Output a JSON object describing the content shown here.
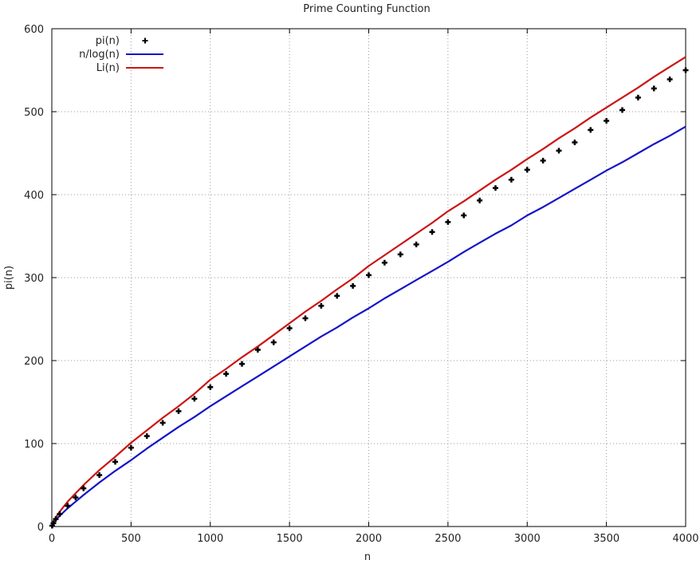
{
  "chart_data": {
    "type": "line",
    "title": "Prime Counting Function",
    "xlabel": "n",
    "ylabel": "pi(n)",
    "xlim": [
      0,
      4000
    ],
    "ylim": [
      0,
      600
    ],
    "x_ticks": [
      0,
      500,
      1000,
      1500,
      2000,
      2500,
      3000,
      3500,
      4000
    ],
    "y_ticks": [
      0,
      100,
      200,
      300,
      400,
      500,
      600
    ],
    "grid": true,
    "legend_position": "top-left",
    "x": [
      2,
      10,
      25,
      50,
      100,
      150,
      200,
      300,
      400,
      500,
      600,
      700,
      800,
      900,
      1000,
      1100,
      1200,
      1300,
      1400,
      1500,
      1600,
      1700,
      1800,
      1900,
      2000,
      2100,
      2200,
      2300,
      2400,
      2500,
      2600,
      2700,
      2800,
      2900,
      3000,
      3100,
      3200,
      3300,
      3400,
      3500,
      3600,
      3700,
      3800,
      3900,
      4000
    ],
    "series": [
      {
        "name": "pi(n)",
        "style": "points",
        "marker": "+",
        "color": "#000000",
        "values": [
          1,
          4,
          9,
          15,
          25,
          35,
          46,
          62,
          78,
          95,
          109,
          125,
          139,
          154,
          168,
          184,
          196,
          213,
          222,
          239,
          251,
          266,
          278,
          290,
          303,
          318,
          328,
          340,
          355,
          367,
          375,
          393,
          408,
          418,
          430,
          441,
          453,
          463,
          478,
          489,
          502,
          517,
          528,
          539,
          550
        ]
      },
      {
        "name": "n/log(n)",
        "style": "line",
        "color": "#1414c8",
        "values": [
          3,
          4,
          8,
          13,
          22,
          30,
          38,
          53,
          67,
          80,
          94,
          107,
          120,
          132,
          145,
          157,
          169,
          181,
          193,
          205,
          217,
          229,
          240,
          252,
          263,
          275,
          286,
          297,
          308,
          319,
          331,
          342,
          353,
          363,
          375,
          385,
          396,
          407,
          418,
          429,
          439,
          450,
          461,
          471,
          482
        ]
      },
      {
        "name": "Li(n)",
        "style": "line",
        "color": "#cc1414",
        "values": [
          0,
          5,
          11,
          18,
          30,
          40,
          50,
          68,
          84,
          101,
          116,
          131,
          145,
          160,
          177,
          190,
          204,
          217,
          231,
          245,
          259,
          272,
          286,
          299,
          314,
          327,
          340,
          353,
          366,
          380,
          392,
          405,
          418,
          430,
          443,
          455,
          468,
          480,
          493,
          505,
          517,
          529,
          542,
          554,
          566
        ]
      }
    ]
  }
}
